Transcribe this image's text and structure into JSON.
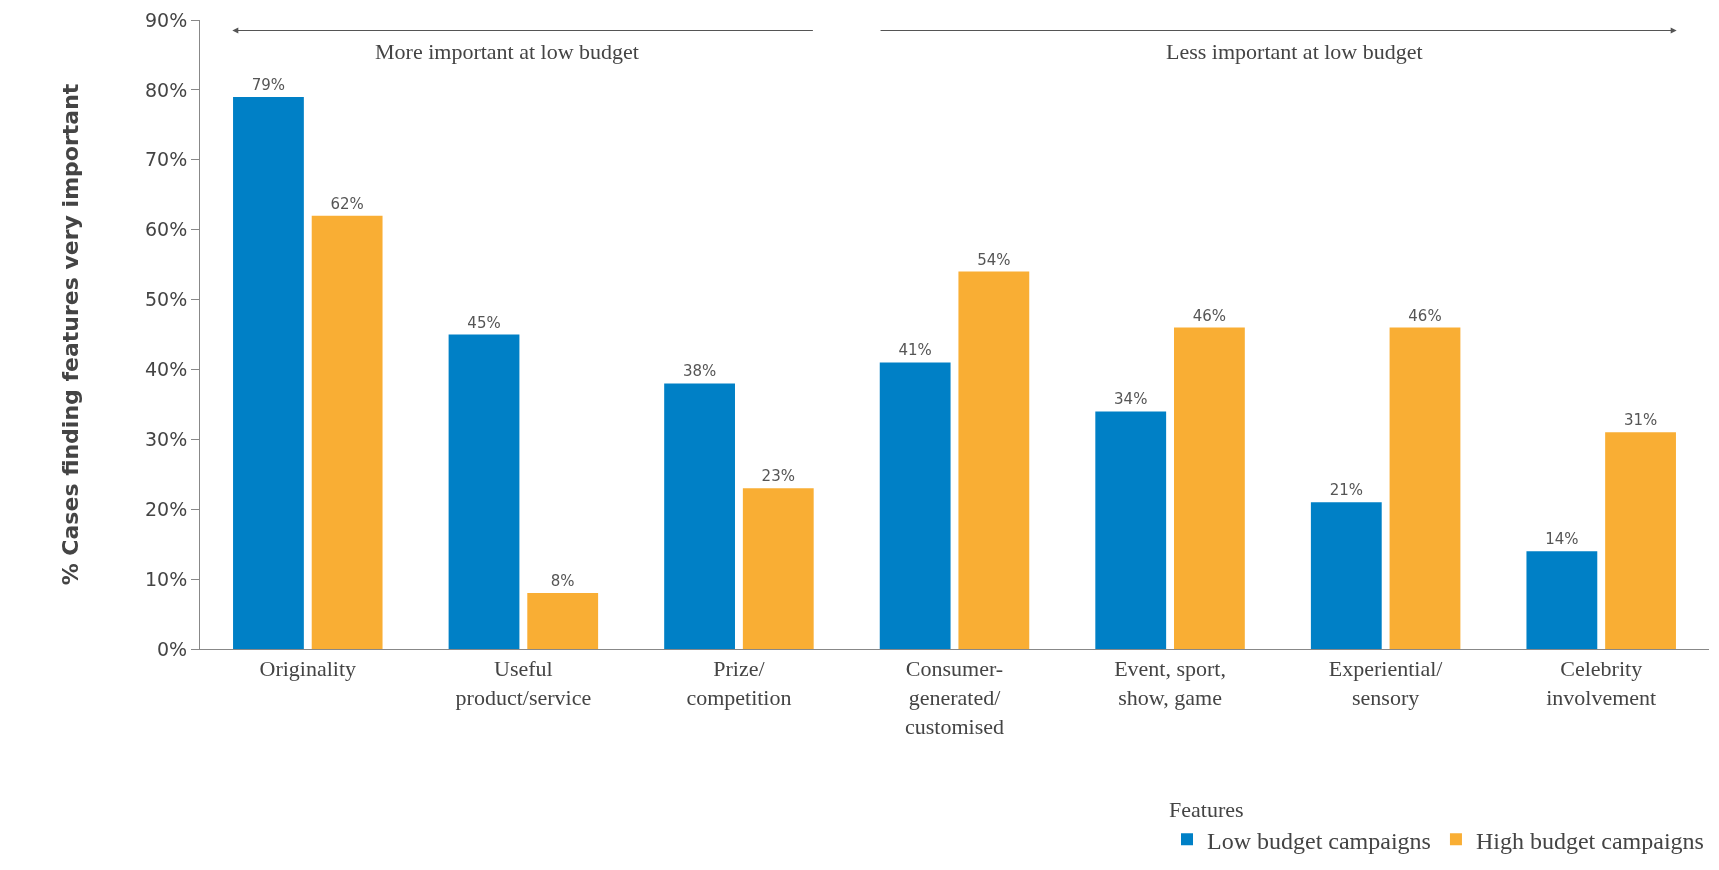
{
  "chart_data": {
    "type": "bar",
    "categories": [
      "Originality",
      "Useful product/service",
      "Prize/competition",
      "Consumer-generated/customised",
      "Event, sport, show, game",
      "Experiential/sensory",
      "Celebrity involvement"
    ],
    "series": [
      {
        "name": "Low budget campaigns",
        "color": "#0080c6",
        "values": [
          79,
          45,
          38,
          41,
          34,
          21,
          14
        ],
        "value_labels": [
          "79%",
          "45%",
          "38%",
          "41%",
          "34%",
          "21%",
          "14%"
        ]
      },
      {
        "name": "High budget campaigns",
        "color": "#f9ae34",
        "values": [
          62,
          8,
          23,
          54,
          46,
          46,
          31
        ],
        "value_labels": [
          "62%",
          "8%",
          "23%",
          "54%",
          "46%",
          "46%",
          "31%"
        ]
      }
    ],
    "ylabel": "% Cases finding features very important",
    "legend_title": "Features",
    "ylim": [
      0,
      90
    ],
    "yticks": [
      {
        "value": 0,
        "label": "0%"
      },
      {
        "value": 10,
        "label": "10%"
      },
      {
        "value": 20,
        "label": "20%"
      },
      {
        "value": 30,
        "label": "30%"
      },
      {
        "value": 40,
        "label": "40%"
      },
      {
        "value": 50,
        "label": "50%"
      },
      {
        "value": 60,
        "label": "60%"
      },
      {
        "value": 70,
        "label": "70%"
      },
      {
        "value": 80,
        "label": "80%"
      },
      {
        "value": 90,
        "label": "90%"
      }
    ],
    "annotations": [
      "More important at low budget",
      "Less important at low budget"
    ],
    "grid": false,
    "legend": "bottom right"
  }
}
